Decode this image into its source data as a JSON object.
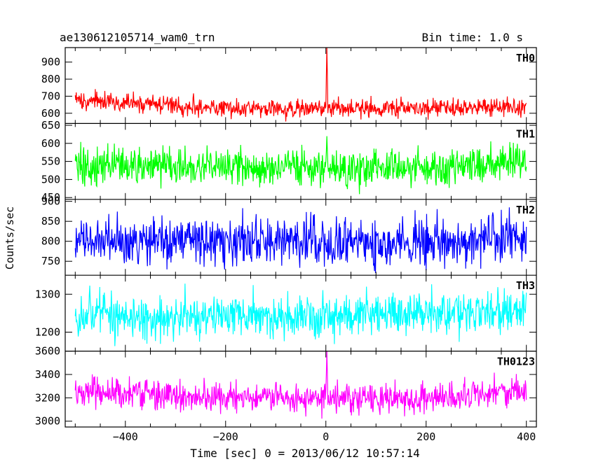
{
  "header": {
    "title": "ae130612105714_wam0_trn",
    "bin_time": "Bin time: 1.0 s"
  },
  "chart_data": {
    "type": "line",
    "xlabel": "Time [sec] 0 = 2013/06/12 10:57:14",
    "ylabel": "Counts/sec",
    "xlim": [
      -520,
      420
    ],
    "xticks": [
      -400,
      -200,
      0,
      200,
      400
    ],
    "xtick_labels": [
      "−400",
      "−200",
      "0",
      "200",
      "400"
    ],
    "bin_time_s": 1.0,
    "panels": [
      {
        "name": "TH0",
        "color": "#ff0000",
        "ylim": [
          540,
          985
        ],
        "yticks": [
          600,
          700,
          800,
          900
        ],
        "ytick_labels": [
          "600",
          "700",
          "800",
          "900"
        ],
        "range": [
          -500,
          400
        ],
        "trend": [
          [
            -500,
            675
          ],
          [
            -400,
            665
          ],
          [
            -300,
            645
          ],
          [
            -200,
            630
          ],
          [
            -100,
            625
          ],
          [
            0,
            628
          ],
          [
            100,
            630
          ],
          [
            200,
            632
          ],
          [
            300,
            635
          ],
          [
            400,
            640
          ]
        ],
        "noise": 28,
        "spike": {
          "x": 2,
          "y": 985
        }
      },
      {
        "name": "TH1",
        "color": "#00ff00",
        "ylim": [
          445,
          655
        ],
        "yticks": [
          450,
          500,
          550,
          600,
          650
        ],
        "ytick_labels": [
          "450",
          "500",
          "550",
          "600",
          "650"
        ],
        "range": [
          -500,
          400
        ],
        "trend": [
          [
            -500,
            540
          ],
          [
            -300,
            535
          ],
          [
            -100,
            530
          ],
          [
            0,
            530
          ],
          [
            200,
            535
          ],
          [
            400,
            555
          ]
        ],
        "noise": 26,
        "spike": {
          "x": 2,
          "y": 620
        }
      },
      {
        "name": "TH2",
        "color": "#0000ff",
        "ylim": [
          715,
          905
        ],
        "yticks": [
          750,
          800,
          850,
          900
        ],
        "ytick_labels": [
          "750",
          "800",
          "850",
          "900"
        ],
        "range": [
          -500,
          400
        ],
        "trend": [
          [
            -500,
            805
          ],
          [
            -300,
            800
          ],
          [
            -100,
            798
          ],
          [
            100,
            800
          ],
          [
            400,
            808
          ]
        ],
        "noise": 30,
        "spike": null
      },
      {
        "name": "TH3",
        "color": "#00ffff",
        "ylim": [
          1150,
          1350
        ],
        "yticks": [
          1200,
          1300
        ],
        "ytick_labels": [
          "1200",
          "1300"
        ],
        "range": [
          -500,
          400
        ],
        "trend": [
          [
            -500,
            1245
          ],
          [
            -300,
            1240
          ],
          [
            -100,
            1240
          ],
          [
            100,
            1245
          ],
          [
            300,
            1250
          ],
          [
            400,
            1260
          ]
        ],
        "noise": 30,
        "spike": null
      },
      {
        "name": "TH0123",
        "color": "#ff00ff",
        "ylim": [
          2950,
          3600
        ],
        "yticks": [
          3000,
          3200,
          3400,
          3600
        ],
        "ytick_labels": [
          "3000",
          "3200",
          "3400",
          "3600"
        ],
        "range": [
          -500,
          400
        ],
        "trend": [
          [
            -500,
            3250
          ],
          [
            -300,
            3220
          ],
          [
            -100,
            3190
          ],
          [
            0,
            3185
          ],
          [
            200,
            3200
          ],
          [
            400,
            3260
          ]
        ],
        "noise": 65,
        "spike": {
          "x": 2,
          "y": 3600
        }
      }
    ]
  }
}
